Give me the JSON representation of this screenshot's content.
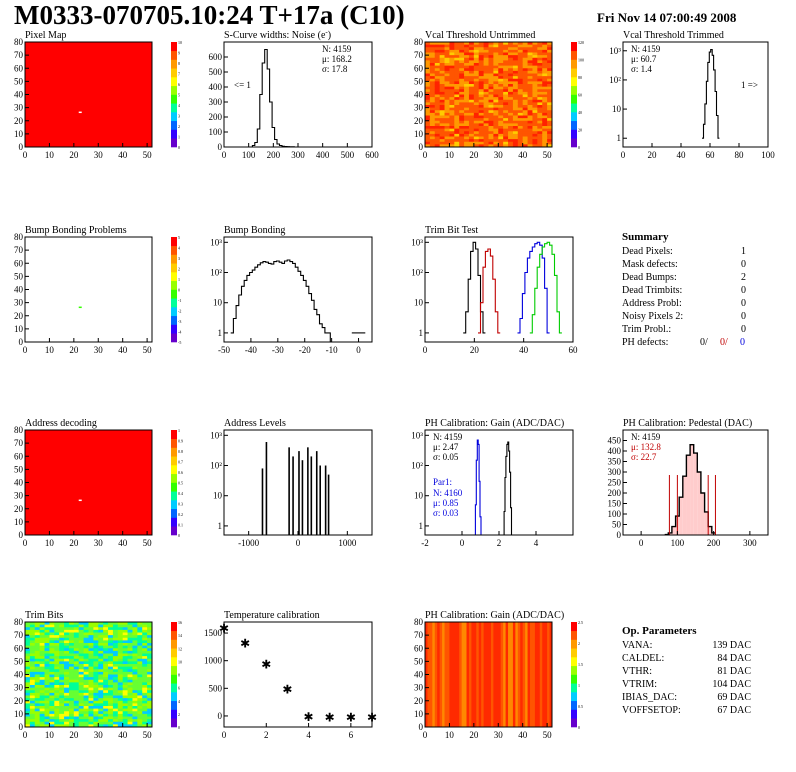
{
  "header": {
    "title": "M0333-070705.10:24 T+17a (C10)",
    "date": "Fri Nov 14 07:00:49 2008"
  },
  "colors": {
    "frame": "#000000",
    "map_red": "#ff0000",
    "series_black": "#000000",
    "series_red": "#c00000",
    "series_blue": "#0000dd",
    "series_green": "#00cc00",
    "palette": [
      "#6600cc",
      "#3300ff",
      "#0066ff",
      "#00ccff",
      "#00ff99",
      "#33ff00",
      "#99ff00",
      "#ffff00",
      "#ffcc00",
      "#ff9900",
      "#ff5500",
      "#ff0000"
    ]
  },
  "chart_data": [
    {
      "id": "pixel_map",
      "type": "heatmap",
      "title": "Pixel Map",
      "xlim": [
        0,
        52
      ],
      "ylim": [
        0,
        80
      ],
      "xticks": [
        "0",
        "10",
        "20",
        "30",
        "40",
        "50"
      ],
      "yticks": [
        "0",
        "10",
        "20",
        "30",
        "40",
        "50",
        "60",
        "70",
        "80"
      ],
      "zticks": [
        "0",
        "1",
        "2",
        "3",
        "4",
        "5",
        "6",
        "7",
        "8",
        "9",
        "10"
      ],
      "fill": "uniform-red",
      "dead_pixels": [
        [
          22,
          27
        ]
      ]
    },
    {
      "id": "scurve",
      "type": "line",
      "title": "S-Curve widths: Noise (e",
      "title_sup": "-",
      "title_close": ")",
      "xlim": [
        0,
        600
      ],
      "ylim": [
        0,
        700
      ],
      "xticks": [
        "0",
        "100",
        "200",
        "300",
        "400",
        "500",
        "600"
      ],
      "yticks": [
        "0",
        "100",
        "200",
        "300",
        "400",
        "500",
        "600"
      ],
      "stats": [
        "N: 4159",
        "μ: 168.2",
        "σ: 17.8"
      ],
      "annotation": "<= 1",
      "series": [
        {
          "color": "#000000",
          "x": [
            110,
            120,
            130,
            140,
            150,
            160,
            170,
            180,
            190,
            200,
            210,
            220,
            230,
            240,
            250,
            260,
            270,
            280,
            290
          ],
          "y": [
            0,
            10,
            30,
            120,
            350,
            560,
            650,
            520,
            300,
            130,
            50,
            20,
            10,
            5,
            3,
            2,
            1,
            1,
            0
          ]
        }
      ]
    },
    {
      "id": "vcal_untrimmed",
      "type": "heatmap",
      "title": "Vcal Threshold Untrimmed",
      "xlim": [
        0,
        52
      ],
      "ylim": [
        0,
        80
      ],
      "xticks": [
        "0",
        "10",
        "20",
        "30",
        "40",
        "50"
      ],
      "yticks": [
        "0",
        "10",
        "20",
        "30",
        "40",
        "50",
        "60",
        "70",
        "80"
      ],
      "zticks": [
        "0",
        "20",
        "40",
        "60",
        "80",
        "100",
        "120"
      ],
      "fill": "noisy-warm"
    },
    {
      "id": "vcal_trimmed",
      "type": "line",
      "title": "Vcal Threshold Trimmed",
      "ylog": true,
      "xlim": [
        0,
        100
      ],
      "ylim": [
        0.5,
        2000
      ],
      "xticks": [
        "0",
        "20",
        "40",
        "60",
        "80",
        "100"
      ],
      "yticks": [
        "1",
        "10",
        "10²",
        "10³"
      ],
      "stats": [
        "N: 4159",
        "μ: 60.7",
        "σ:  1.4"
      ],
      "annotation": "1 =>",
      "series": [
        {
          "color": "#000000",
          "x": [
            55,
            56,
            57,
            58,
            59,
            60,
            61,
            62,
            63,
            64,
            65,
            66
          ],
          "y": [
            1,
            3,
            15,
            90,
            400,
            900,
            1100,
            700,
            220,
            40,
            6,
            1
          ]
        }
      ]
    },
    {
      "id": "bump_problems",
      "type": "heatmap",
      "title": "Bump Bonding Problems",
      "xlim": [
        0,
        52
      ],
      "ylim": [
        0,
        80
      ],
      "xticks": [
        "0",
        "10",
        "20",
        "30",
        "40",
        "50"
      ],
      "yticks": [
        "0",
        "10",
        "20",
        "30",
        "40",
        "50",
        "60",
        "70",
        "80"
      ],
      "zticks": [
        "-5",
        "-4",
        "-3",
        "-2",
        "-1",
        "0",
        "1",
        "2",
        "3",
        "4",
        "5"
      ],
      "fill": "empty",
      "marked_pixels": [
        [
          22,
          27
        ]
      ]
    },
    {
      "id": "bump_bonding",
      "type": "line",
      "title": "Bump Bonding",
      "ylog": true,
      "xlim": [
        -50,
        5
      ],
      "ylim": [
        0.5,
        1500
      ],
      "xticks": [
        "-50",
        "-40",
        "-30",
        "-20",
        "-10",
        "0"
      ],
      "yticks": [
        "1",
        "10",
        "10²",
        "10³"
      ],
      "series": [
        {
          "color": "#000000",
          "x": [
            -47,
            -46,
            -45,
            -44,
            -43,
            -42,
            -41,
            -40,
            -39,
            -38,
            -37,
            -36,
            -35,
            -34,
            -33,
            -32,
            -31,
            -30,
            -29,
            -28,
            -27,
            -26,
            -25,
            -24,
            -23,
            -22,
            -21,
            -20,
            -19,
            -18,
            -17,
            -16,
            -15,
            -14,
            -13,
            -12,
            -11,
            -10
          ],
          "y": [
            1,
            3,
            8,
            18,
            35,
            55,
            80,
            100,
            120,
            150,
            180,
            210,
            230,
            220,
            200,
            190,
            230,
            240,
            220,
            200,
            240,
            260,
            230,
            200,
            150,
            110,
            80,
            55,
            35,
            20,
            12,
            6,
            4,
            2,
            1.5,
            1,
            1,
            0
          ]
        },
        {
          "color": "#000000",
          "x": [
            -2,
            -1,
            0,
            1,
            2
          ],
          "y": [
            1,
            1,
            1,
            1,
            1
          ]
        }
      ]
    },
    {
      "id": "trim_bit_test",
      "type": "line",
      "title": "Trim Bit Test",
      "ylog": true,
      "xlim": [
        0,
        60
      ],
      "ylim": [
        0.5,
        1500
      ],
      "xticks": [
        "0",
        "20",
        "40",
        "60"
      ],
      "yticks": [
        "1",
        "10",
        "10²",
        "10³"
      ],
      "series": [
        {
          "color": "#000000",
          "x": [
            16,
            17,
            18,
            19,
            20,
            21,
            22,
            23,
            24
          ],
          "y": [
            1,
            5,
            60,
            500,
            1000,
            600,
            80,
            5,
            1
          ]
        },
        {
          "color": "#c00000",
          "x": [
            22,
            23,
            24,
            25,
            26,
            27,
            28,
            29,
            30
          ],
          "y": [
            1,
            10,
            150,
            500,
            600,
            350,
            60,
            5,
            1
          ]
        },
        {
          "color": "#0000dd",
          "x": [
            38,
            39,
            40,
            41,
            42,
            43,
            44,
            45,
            46,
            47,
            48,
            49,
            50
          ],
          "y": [
            1,
            3,
            20,
            100,
            300,
            500,
            700,
            900,
            1000,
            800,
            300,
            30,
            1
          ]
        },
        {
          "color": "#00cc00",
          "x": [
            43,
            44,
            45,
            46,
            47,
            48,
            49,
            50,
            51,
            52,
            53,
            54,
            55
          ],
          "y": [
            1,
            4,
            30,
            150,
            400,
            700,
            900,
            1000,
            800,
            400,
            80,
            5,
            1
          ]
        }
      ]
    },
    {
      "id": "address_decoding",
      "type": "heatmap",
      "title": "Address decoding",
      "xlim": [
        0,
        52
      ],
      "ylim": [
        0,
        80
      ],
      "xticks": [
        "0",
        "10",
        "20",
        "30",
        "40",
        "50"
      ],
      "yticks": [
        "0",
        "10",
        "20",
        "30",
        "40",
        "50",
        "60",
        "70",
        "80"
      ],
      "zticks": [
        "0",
        "0.1",
        "0.2",
        "0.3",
        "0.4",
        "0.5",
        "0.6",
        "0.7",
        "0.8",
        "0.9",
        "1"
      ],
      "fill": "uniform-red",
      "dead_pixels": [
        [
          22,
          27
        ]
      ]
    },
    {
      "id": "address_levels",
      "type": "line",
      "title": "Address Levels",
      "ylog": true,
      "xlim": [
        -1500,
        1500
      ],
      "ylim": [
        0.5,
        1500
      ],
      "xticks": [
        "-1000",
        "0",
        "1000"
      ],
      "yticks": [
        "1",
        "10",
        "10²",
        "10³"
      ],
      "spikes": [
        [
          -720,
          80
        ],
        [
          -640,
          600
        ],
        [
          -180,
          400
        ],
        [
          -100,
          200
        ],
        [
          20,
          300
        ],
        [
          90,
          150
        ],
        [
          200,
          400
        ],
        [
          270,
          200
        ],
        [
          380,
          300
        ],
        [
          450,
          100
        ],
        [
          560,
          100
        ],
        [
          620,
          50
        ]
      ]
    },
    {
      "id": "ph_gain",
      "type": "line",
      "title": "PH Calibration: Gain (ADC/DAC)",
      "ylog": true,
      "xlim": [
        -2,
        6
      ],
      "ylim": [
        0.5,
        1500
      ],
      "xticks": [
        "-2",
        "0",
        "2",
        "4"
      ],
      "yticks": [
        "1",
        "10",
        "10²",
        "10³"
      ],
      "stats": [
        "N: 4159",
        "μ: 2.47",
        "σ: 0.05"
      ],
      "stats2_title": "Par1:",
      "stats2": [
        "N: 4160",
        "μ: 0.85",
        "σ: 0.03"
      ],
      "series": [
        {
          "color": "#000000",
          "x": [
            2.25,
            2.3,
            2.35,
            2.4,
            2.45,
            2.5,
            2.55,
            2.6,
            2.65,
            2.7
          ],
          "y": [
            0,
            3,
            40,
            200,
            500,
            600,
            300,
            60,
            4,
            0
          ]
        },
        {
          "color": "#0000dd",
          "x": [
            0.7,
            0.75,
            0.8,
            0.85,
            0.9,
            0.95,
            1.0,
            1.05
          ],
          "y": [
            0,
            5,
            150,
            700,
            500,
            30,
            2,
            0
          ]
        }
      ]
    },
    {
      "id": "ph_pedestal",
      "type": "bar",
      "title": "PH Calibration: Pedestal (DAC)",
      "xlim": [
        -50,
        350
      ],
      "ylim": [
        0,
        500
      ],
      "xticks": [
        "0",
        "100",
        "200",
        "300"
      ],
      "yticks": [
        "0",
        "50",
        "100",
        "150",
        "200",
        "250",
        "300",
        "350",
        "400",
        "450"
      ],
      "stats": [
        "N: 4159",
        "μ: 132.8",
        "σ: 22.7"
      ],
      "series": [
        {
          "color": "#000000",
          "x": [
            70,
            80,
            90,
            100,
            110,
            120,
            130,
            140,
            150,
            160,
            170,
            180,
            190,
            200
          ],
          "y": [
            2,
            10,
            40,
            90,
            180,
            280,
            380,
            430,
            390,
            300,
            200,
            110,
            40,
            10
          ]
        }
      ],
      "markers_red": [
        78,
        100,
        185,
        205
      ]
    },
    {
      "id": "trim_bits",
      "type": "heatmap",
      "title": "Trim Bits",
      "xlim": [
        0,
        52
      ],
      "ylim": [
        0,
        80
      ],
      "xticks": [
        "0",
        "10",
        "20",
        "30",
        "40",
        "50"
      ],
      "yticks": [
        "0",
        "10",
        "20",
        "30",
        "40",
        "50",
        "60",
        "70",
        "80"
      ],
      "zticks": [
        "0",
        "2",
        "4",
        "6",
        "8",
        "10",
        "12",
        "14",
        "16"
      ],
      "fill": "noisy-green"
    },
    {
      "id": "temperature",
      "type": "scatter",
      "title": "Temperature calibration",
      "xlim": [
        0,
        7
      ],
      "ylim": [
        -200,
        1700
      ],
      "xticks": [
        "0",
        "2",
        "4",
        "6"
      ],
      "yticks": [
        "0",
        "500",
        "1000",
        "1500"
      ],
      "x": [
        0,
        1,
        2,
        3,
        4,
        5,
        6,
        7
      ],
      "y": [
        1600,
        1330,
        950,
        500,
        0,
        -10,
        -10,
        -10
      ]
    },
    {
      "id": "ph_gain_map",
      "type": "heatmap",
      "title": "PH Calibration: Gain (ADC/DAC)",
      "xlim": [
        0,
        52
      ],
      "ylim": [
        0,
        80
      ],
      "xticks": [
        "0",
        "10",
        "20",
        "30",
        "40",
        "50"
      ],
      "yticks": [
        "0",
        "10",
        "20",
        "30",
        "40",
        "50",
        "60",
        "70",
        "80"
      ],
      "zticks": [
        "0",
        "0.5",
        "1",
        "1.5",
        "2",
        "2.5"
      ],
      "fill": "column-stripes"
    }
  ],
  "summary": {
    "title": "Summary",
    "rows": [
      {
        "label": "Dead Pixels:",
        "value": "1"
      },
      {
        "label": "Mask defects:",
        "value": "0"
      },
      {
        "label": "Dead Bumps:",
        "value": "2"
      },
      {
        "label": "Dead Trimbits:",
        "value": "0"
      },
      {
        "label": "Address Probl:",
        "value": "0"
      },
      {
        "label": "Noisy Pixels 2:",
        "value": "0"
      },
      {
        "label": "Trim Probl.:",
        "value": "0"
      }
    ],
    "ph_label": "PH defects:",
    "ph_values": [
      "0/",
      "0/",
      "0"
    ]
  },
  "op_params": {
    "title": "Op. Parameters",
    "rows": [
      {
        "label": "VANA:",
        "value": "139 DAC"
      },
      {
        "label": "CALDEL:",
        "value": "84 DAC"
      },
      {
        "label": "VTHR:",
        "value": "81 DAC"
      },
      {
        "label": "VTRIM:",
        "value": "104 DAC"
      },
      {
        "label": "IBIAS_DAC:",
        "value": "69 DAC"
      },
      {
        "label": "VOFFSETOP:",
        "value": "67 DAC"
      }
    ]
  }
}
